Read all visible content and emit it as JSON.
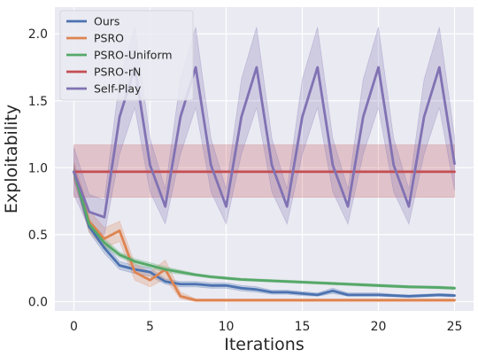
{
  "chart_data": {
    "type": "line",
    "title": "",
    "xlabel": "Iterations",
    "ylabel": "Exploitability",
    "xlim": [
      -1.25,
      26.25
    ],
    "ylim": [
      -0.07,
      2.2
    ],
    "xticks": [
      0,
      5,
      10,
      15,
      20,
      25
    ],
    "yticks": [
      0.0,
      0.5,
      1.0,
      1.5,
      2.0
    ],
    "xtick_labels": [
      "0",
      "5",
      "10",
      "15",
      "20",
      "25"
    ],
    "ytick_labels": [
      "0.0",
      "0.5",
      "1.0",
      "1.5",
      "2.0"
    ],
    "grid": true,
    "background": "#eaeaf2",
    "legend_position": "upper-left",
    "x": [
      0,
      1,
      2,
      3,
      4,
      5,
      6,
      7,
      8,
      9,
      10,
      11,
      12,
      13,
      14,
      15,
      16,
      17,
      18,
      19,
      20,
      21,
      22,
      23,
      24,
      25
    ],
    "series": [
      {
        "name": "Ours",
        "color": "#4c72b0",
        "values": [
          0.97,
          0.56,
          0.4,
          0.27,
          0.24,
          0.22,
          0.15,
          0.13,
          0.13,
          0.12,
          0.12,
          0.1,
          0.09,
          0.07,
          0.07,
          0.06,
          0.05,
          0.08,
          0.05,
          0.05,
          0.05,
          0.045,
          0.04,
          0.045,
          0.05,
          0.045
        ],
        "lower": [
          0.92,
          0.52,
          0.36,
          0.24,
          0.21,
          0.19,
          0.13,
          0.11,
          0.11,
          0.1,
          0.1,
          0.08,
          0.07,
          0.055,
          0.055,
          0.045,
          0.04,
          0.06,
          0.04,
          0.04,
          0.04,
          0.035,
          0.03,
          0.035,
          0.04,
          0.035
        ],
        "upper": [
          1.02,
          0.6,
          0.44,
          0.3,
          0.27,
          0.25,
          0.17,
          0.15,
          0.15,
          0.14,
          0.14,
          0.12,
          0.11,
          0.085,
          0.085,
          0.075,
          0.065,
          0.1,
          0.065,
          0.065,
          0.065,
          0.055,
          0.05,
          0.055,
          0.06,
          0.055
        ]
      },
      {
        "name": "PSRO",
        "color": "#dd8452",
        "values": [
          0.97,
          0.6,
          0.47,
          0.53,
          0.22,
          0.16,
          0.24,
          0.04,
          0.01,
          0.01,
          0.01,
          0.01,
          0.01,
          0.01,
          0.01,
          0.01,
          0.01,
          0.01,
          0.01,
          0.01,
          0.01,
          0.01,
          0.01,
          0.01,
          0.01,
          0.01
        ],
        "lower": [
          0.9,
          0.52,
          0.4,
          0.45,
          0.16,
          0.11,
          0.17,
          0.02,
          0.0,
          0.0,
          0.0,
          0.0,
          0.0,
          0.0,
          0.0,
          0.0,
          0.0,
          0.0,
          0.0,
          0.0,
          0.0,
          0.0,
          0.0,
          0.0,
          0.0,
          0.0
        ],
        "upper": [
          1.04,
          0.68,
          0.55,
          0.6,
          0.28,
          0.22,
          0.31,
          0.07,
          0.02,
          0.02,
          0.02,
          0.02,
          0.02,
          0.02,
          0.02,
          0.02,
          0.02,
          0.02,
          0.02,
          0.02,
          0.02,
          0.02,
          0.02,
          0.02,
          0.02,
          0.02
        ]
      },
      {
        "name": "PSRO-Uniform",
        "color": "#55a868",
        "values": [
          0.97,
          0.58,
          0.44,
          0.35,
          0.3,
          0.27,
          0.24,
          0.22,
          0.2,
          0.185,
          0.175,
          0.165,
          0.16,
          0.155,
          0.15,
          0.145,
          0.14,
          0.135,
          0.13,
          0.125,
          0.12,
          0.115,
          0.11,
          0.108,
          0.105,
          0.1
        ],
        "lower": [
          0.94,
          0.55,
          0.41,
          0.33,
          0.28,
          0.25,
          0.22,
          0.205,
          0.19,
          0.175,
          0.165,
          0.155,
          0.15,
          0.145,
          0.14,
          0.135,
          0.13,
          0.125,
          0.12,
          0.115,
          0.11,
          0.105,
          0.1,
          0.098,
          0.095,
          0.09
        ],
        "upper": [
          1.0,
          0.61,
          0.47,
          0.37,
          0.32,
          0.29,
          0.26,
          0.235,
          0.21,
          0.195,
          0.185,
          0.175,
          0.17,
          0.165,
          0.16,
          0.155,
          0.15,
          0.145,
          0.14,
          0.135,
          0.13,
          0.125,
          0.12,
          0.118,
          0.115,
          0.11
        ]
      },
      {
        "name": "PSRO-rN",
        "color": "#c44e52",
        "values": [
          0.97,
          0.97,
          0.97,
          0.97,
          0.97,
          0.97,
          0.97,
          0.97,
          0.97,
          0.97,
          0.97,
          0.97,
          0.97,
          0.97,
          0.97,
          0.97,
          0.97,
          0.97,
          0.97,
          0.97,
          0.97,
          0.97,
          0.97,
          0.97,
          0.97,
          0.97
        ],
        "lower": [
          0.78,
          0.78,
          0.78,
          0.78,
          0.78,
          0.78,
          0.78,
          0.78,
          0.78,
          0.78,
          0.78,
          0.78,
          0.78,
          0.78,
          0.78,
          0.78,
          0.78,
          0.78,
          0.78,
          0.78,
          0.78,
          0.78,
          0.78,
          0.78,
          0.78,
          0.78
        ],
        "upper": [
          1.17,
          1.17,
          1.17,
          1.17,
          1.17,
          1.17,
          1.17,
          1.17,
          1.17,
          1.17,
          1.17,
          1.17,
          1.17,
          1.17,
          1.17,
          1.17,
          1.17,
          1.17,
          1.17,
          1.17,
          1.17,
          1.17,
          1.17,
          1.17,
          1.17,
          1.17
        ]
      },
      {
        "name": "Self-Play",
        "color": "#8172b3",
        "values": [
          0.97,
          0.67,
          0.63,
          1.38,
          1.75,
          1.02,
          0.71,
          1.38,
          1.75,
          1.02,
          0.71,
          1.38,
          1.75,
          1.02,
          0.71,
          1.38,
          1.75,
          1.02,
          0.71,
          1.38,
          1.75,
          1.02,
          0.71,
          1.38,
          1.75,
          1.03
        ],
        "lower": [
          0.8,
          0.55,
          0.5,
          1.1,
          1.45,
          0.82,
          0.58,
          1.1,
          1.45,
          0.82,
          0.58,
          1.1,
          1.45,
          0.82,
          0.58,
          1.1,
          1.45,
          0.82,
          0.58,
          1.1,
          1.45,
          0.82,
          0.58,
          1.1,
          1.45,
          0.83
        ],
        "upper": [
          1.15,
          0.8,
          0.76,
          1.66,
          2.05,
          1.22,
          0.84,
          1.66,
          2.05,
          1.22,
          0.84,
          1.66,
          2.05,
          1.22,
          0.84,
          1.66,
          2.05,
          1.22,
          0.84,
          1.66,
          2.05,
          1.22,
          0.84,
          1.66,
          2.05,
          1.23
        ]
      }
    ]
  }
}
